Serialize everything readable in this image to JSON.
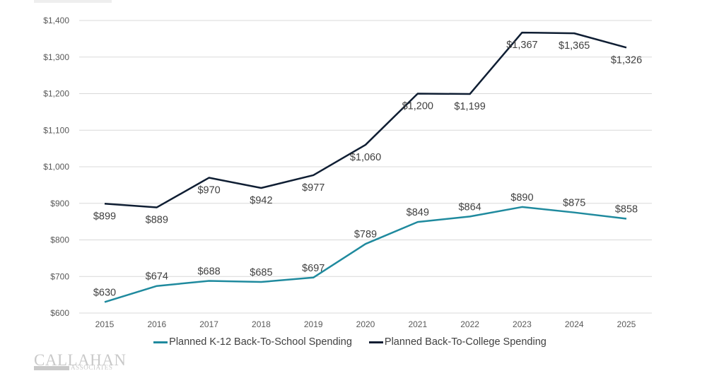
{
  "chart_data": {
    "type": "line",
    "title": "",
    "xlabel": "",
    "ylabel": "",
    "categories": [
      "2015",
      "2016",
      "2017",
      "2018",
      "2019",
      "2020",
      "2021",
      "2022",
      "2023",
      "2024",
      "2025"
    ],
    "ylim": [
      600,
      1400
    ],
    "yticks": [
      600,
      700,
      800,
      900,
      1000,
      1100,
      1200,
      1300,
      1400
    ],
    "ytick_labels": [
      "$600",
      "$700",
      "$800",
      "$900",
      "$1,000",
      "$1,100",
      "$1,200",
      "$1,300",
      "$1,400"
    ],
    "grid": true,
    "legend_position": "bottom",
    "series": [
      {
        "name": "Planned K-12 Back-To-School Spending",
        "color": "#1f8a9e",
        "values": [
          630,
          674,
          688,
          685,
          697,
          789,
          849,
          864,
          890,
          875,
          858
        ],
        "labels": [
          "$630",
          "$674",
          "$688",
          "$685",
          "$697",
          "$789",
          "$849",
          "$864",
          "$890",
          "$875",
          "$858"
        ],
        "label_position": "above"
      },
      {
        "name": "Planned Back-To-College Spending",
        "color": "#0f1e33",
        "values": [
          899,
          889,
          970,
          942,
          977,
          1060,
          1200,
          1199,
          1367,
          1365,
          1326
        ],
        "labels": [
          "$899",
          "$889",
          "$970",
          "$942",
          "$977",
          "$1,060",
          "$1,200",
          "$1,199",
          "$1,367",
          "$1,365",
          "$1,326"
        ],
        "label_position": "below"
      }
    ]
  },
  "legend": {
    "items": [
      {
        "label": "Planned K-12 Back-To-School Spending",
        "color": "#1f8a9e"
      },
      {
        "label": "Planned Back-To-College Spending",
        "color": "#0f1e33"
      }
    ]
  },
  "logo": {
    "top": "CALLAHAN",
    "bottom": "ASSOCIATES"
  }
}
